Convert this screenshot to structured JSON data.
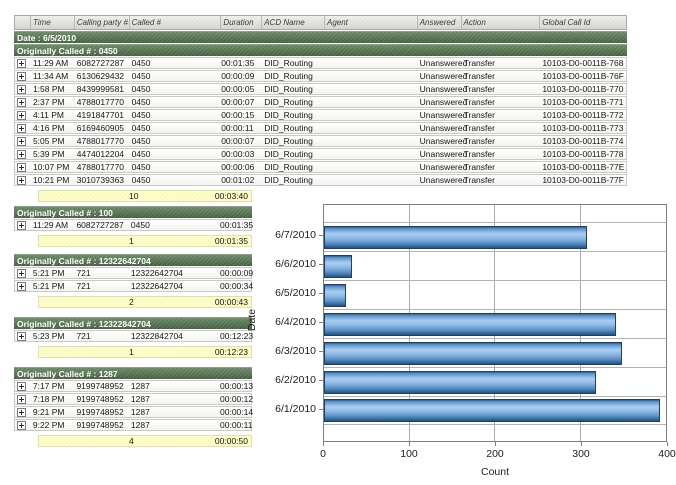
{
  "table": {
    "columns": [
      "",
      "Time",
      "Calling party #",
      "Called #",
      "Duration",
      "ACD Name",
      "Agent",
      "Answered",
      "Action",
      "Global Call Id"
    ],
    "date_header": "Date : 6/5/2010",
    "groups": [
      {
        "header": "Originally Called # : 0450",
        "rows": [
          [
            "11:29 AM",
            "6082727287",
            "0450",
            "00:01:35",
            "DID_Routing",
            "",
            "Unanswered",
            "Transfer",
            "10103-D0-0011B-768"
          ],
          [
            "11:34 AM",
            "6130629432",
            "0450",
            "00:00:09",
            "DID_Routing",
            "",
            "Unanswered",
            "Transfer",
            "10103-D0-0011B-76F"
          ],
          [
            "1:58 PM",
            "8439999581",
            "0450",
            "00:00:05",
            "DID_Routing",
            "",
            "Unanswered",
            "Transfer",
            "10103-D0-0011B-770"
          ],
          [
            "2:37 PM",
            "4788017770",
            "0450",
            "00:00:07",
            "DID_Routing",
            "",
            "Unanswered",
            "Transfer",
            "10103-D0-0011B-771"
          ],
          [
            "4:11 PM",
            "4191847701",
            "0450",
            "00:00:15",
            "DID_Routing",
            "",
            "Unanswered",
            "Transfer",
            "10103-D0-0011B-772"
          ],
          [
            "4:16 PM",
            "6169460905",
            "0450",
            "00:00:11",
            "DID_Routing",
            "",
            "Unanswered",
            "Transfer",
            "10103-D0-0011B-773"
          ],
          [
            "5:05 PM",
            "4788017770",
            "0450",
            "00:00:07",
            "DID_Routing",
            "",
            "Unanswered",
            "Transfer",
            "10103-D0-0011B-774"
          ],
          [
            "5:39 PM",
            "4474012204",
            "0450",
            "00:00:03",
            "DID_Routing",
            "",
            "Unanswered",
            "Transfer",
            "10103-D0-0011B-778"
          ],
          [
            "10:07 PM",
            "4788017770",
            "0450",
            "00:00:06",
            "DID_Routing",
            "",
            "Unanswered",
            "Transfer",
            "10103-D0-0011B-77E"
          ],
          [
            "10:21 PM",
            "3010739363",
            "0450",
            "00:01:02",
            "DID_Routing",
            "",
            "Unanswered",
            "Transfer",
            "10103-D0-0011B-77F"
          ]
        ],
        "summary": {
          "count": "10",
          "total_duration": "00:03:40"
        }
      },
      {
        "header": "Originally Called # : 100",
        "rows": [
          [
            "11:29 AM",
            "6082727287",
            "0450",
            "00:01:35"
          ]
        ],
        "summary": {
          "count": "1",
          "total_duration": "00:01:35"
        }
      },
      {
        "header": "Originally Called # : 12322642704",
        "rows": [
          [
            "5:21 PM",
            "721",
            "12322642704",
            "00:00:09"
          ],
          [
            "5:21 PM",
            "721",
            "12322642704",
            "00:00:34"
          ]
        ],
        "summary": {
          "count": "2",
          "total_duration": "00:00:43"
        }
      },
      {
        "header": "Originally Called # : 12322842704",
        "rows": [
          [
            "5:23 PM",
            "721",
            "12322842704",
            "00:12:23"
          ]
        ],
        "summary": {
          "count": "1",
          "total_duration": "00:12:23"
        }
      },
      {
        "header": "Originally Called # : 1287",
        "rows": [
          [
            "7:17 PM",
            "9199748952",
            "1287",
            "00:00:13"
          ],
          [
            "7:18 PM",
            "9199748952",
            "1287",
            "00:00:12"
          ],
          [
            "9:21 PM",
            "9199748952",
            "1287",
            "00:00:14"
          ],
          [
            "9:22 PM",
            "9199748952",
            "1287",
            "00:00:11"
          ]
        ],
        "summary": {
          "count": "4",
          "total_duration": "00:00:50"
        }
      }
    ]
  },
  "chart_data": {
    "type": "bar",
    "orientation": "horizontal",
    "title": "",
    "categories": [
      "6/7/2010",
      "6/6/2010",
      "6/5/2010",
      "6/4/2010",
      "6/3/2010",
      "6/2/2010",
      "6/1/2010"
    ],
    "values": [
      308,
      33,
      26,
      341,
      348,
      318,
      393
    ],
    "xlabel": "Count",
    "ylabel": "Date",
    "xlim": [
      0,
      400
    ],
    "xticks": [
      0,
      100,
      200,
      300,
      400
    ],
    "grid": true,
    "legend": false
  },
  "colors": {
    "group_band_green": "#4c684e",
    "summary_yellow": "#ffffc9",
    "bar_blue": "#6f9fd4"
  }
}
